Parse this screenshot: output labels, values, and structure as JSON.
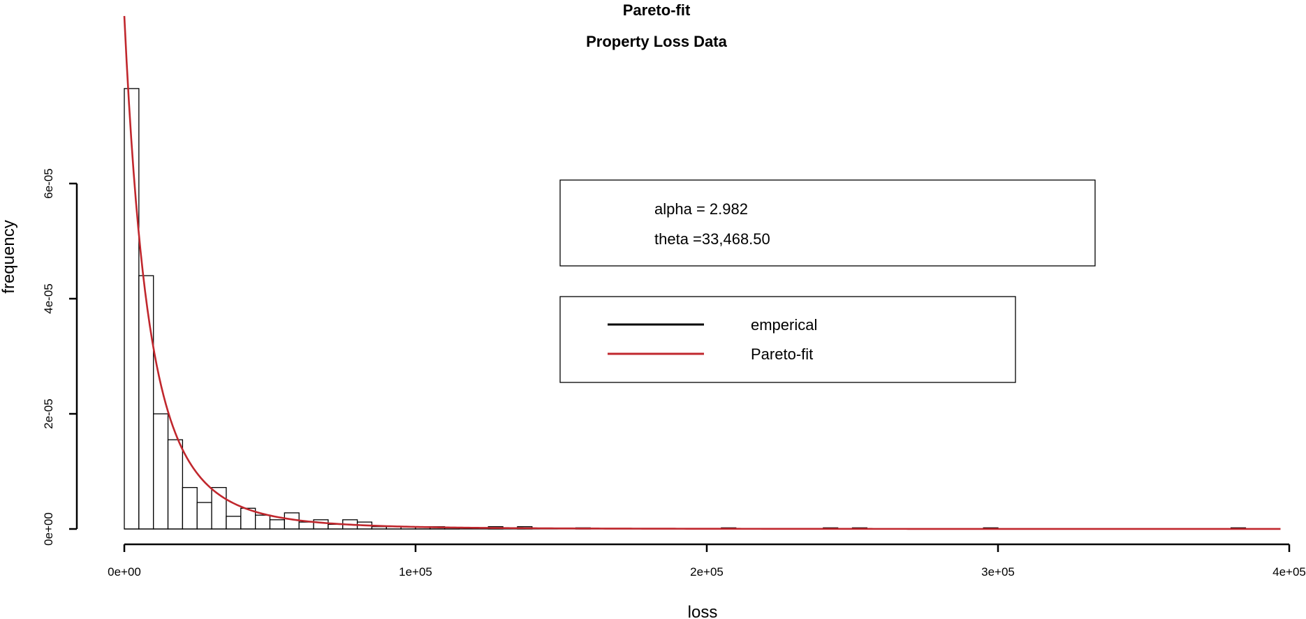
{
  "chart_data": {
    "type": "bar",
    "title": "Pareto-fit",
    "subtitle": "Property Loss Data",
    "xlabel": "loss",
    "ylabel": "frequency",
    "xlim": [
      0,
      400000
    ],
    "ylim": [
      0,
      8e-05
    ],
    "x_ticks": [
      0,
      100000,
      200000,
      300000,
      400000
    ],
    "x_tick_labels": [
      "0e+00",
      "1e+05",
      "2e+05",
      "3e+05",
      "4e+05"
    ],
    "y_ticks": [
      0,
      2e-05,
      4e-05,
      6e-05
    ],
    "y_tick_labels": [
      "0e+00",
      "2e-05",
      "4e-05",
      "6e-05"
    ],
    "bin_width": 5000,
    "histogram": {
      "name": "emperical",
      "bins": [
        {
          "x0": 0,
          "density": 7.65e-05
        },
        {
          "x0": 5000,
          "density": 4.4e-05
        },
        {
          "x0": 10000,
          "density": 2e-05
        },
        {
          "x0": 15000,
          "density": 1.55e-05
        },
        {
          "x0": 20000,
          "density": 7.2e-06
        },
        {
          "x0": 25000,
          "density": 4.6e-06
        },
        {
          "x0": 30000,
          "density": 7.2e-06
        },
        {
          "x0": 35000,
          "density": 2.2e-06
        },
        {
          "x0": 40000,
          "density": 3.6e-06
        },
        {
          "x0": 45000,
          "density": 2.4e-06
        },
        {
          "x0": 50000,
          "density": 1.6e-06
        },
        {
          "x0": 55000,
          "density": 2.8e-06
        },
        {
          "x0": 60000,
          "density": 1.2e-06
        },
        {
          "x0": 65000,
          "density": 1.6e-06
        },
        {
          "x0": 70000,
          "density": 8e-07
        },
        {
          "x0": 75000,
          "density": 1.6e-06
        },
        {
          "x0": 80000,
          "density": 1.2e-06
        },
        {
          "x0": 85000,
          "density": 4e-07
        },
        {
          "x0": 90000,
          "density": 4e-07
        },
        {
          "x0": 95000,
          "density": 4e-07
        },
        {
          "x0": 100000,
          "density": 4e-07
        },
        {
          "x0": 105000,
          "density": 4e-07
        },
        {
          "x0": 110000,
          "density": 2e-07
        },
        {
          "x0": 125000,
          "density": 4e-07
        },
        {
          "x0": 135000,
          "density": 4e-07
        },
        {
          "x0": 155000,
          "density": 2e-07
        },
        {
          "x0": 205000,
          "density": 2e-07
        },
        {
          "x0": 240000,
          "density": 2e-07
        },
        {
          "x0": 250000,
          "density": 2e-07
        },
        {
          "x0": 295000,
          "density": 2e-07
        },
        {
          "x0": 380000,
          "density": 2e-07
        }
      ]
    },
    "fit": {
      "name": "Pareto-fit",
      "distribution": "pareto",
      "alpha": 2.982,
      "theta": 33468.5,
      "x_max": 397000
    },
    "legend": {
      "placement": "center-right",
      "entries": [
        {
          "label": "emperical",
          "color": "#000000"
        },
        {
          "label": "Pareto-fit",
          "color": "#c0272d"
        }
      ]
    },
    "params_box": {
      "alpha_text": "alpha = 2.982",
      "theta_text": "theta =33,468.50"
    },
    "grid": false
  },
  "colors": {
    "fit_line": "#c0272d",
    "bar_stroke": "#000000",
    "bar_fill": "#ffffff"
  }
}
